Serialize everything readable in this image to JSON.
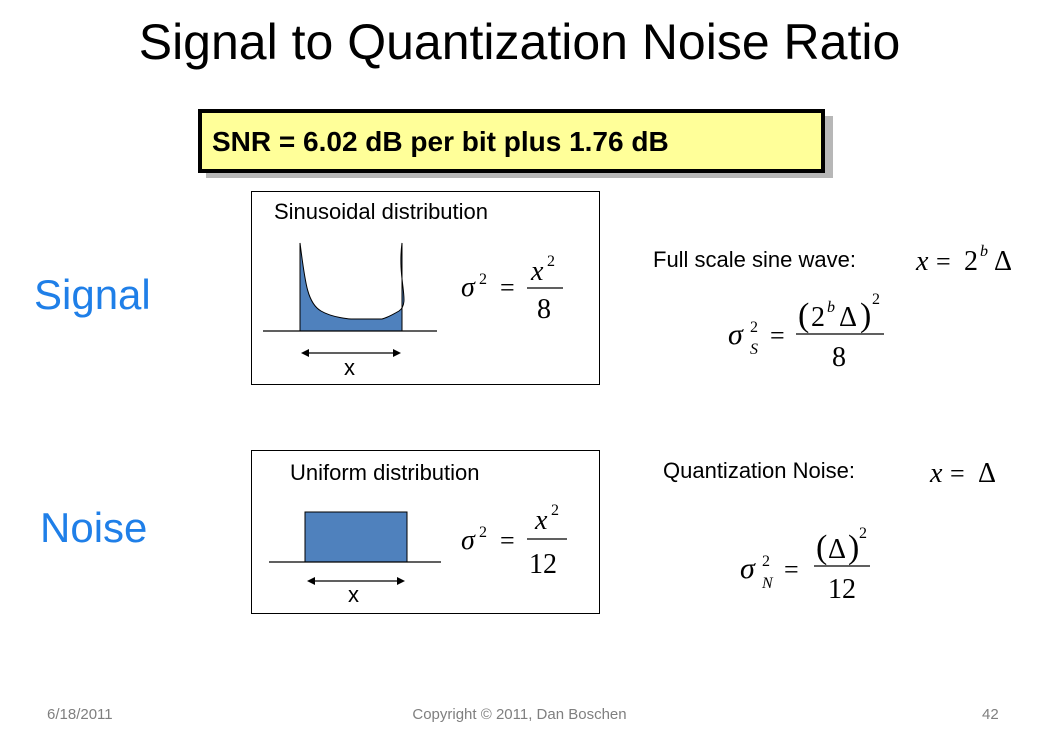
{
  "slide": {
    "title": "Signal to Quantization Noise Ratio",
    "callout": "SNR = 6.02 dB per bit plus 1.76 dB"
  },
  "signal": {
    "label": "Signal",
    "box_title": "Sinusoidal distribution",
    "width_label": "x",
    "formula_variance": "σ² = x² / 8",
    "fullscale_label": "Full scale sine wave:",
    "fullscale_formula": "x = 2ᵇ Δ",
    "signal_power_formula": "σS² = (2ᵇ Δ)² / 8"
  },
  "noise": {
    "label": "Noise",
    "box_title": "Uniform distribution",
    "width_label": "x",
    "formula_variance": "σ² = x² / 12",
    "qn_label": "Quantization Noise:",
    "qn_formula": "x = Δ",
    "noise_power_formula": "σN² = (Δ)² / 12"
  },
  "colors": {
    "accent": "#1f7fe8",
    "fill": "#4f81bd",
    "callout_bg": "#ffff99"
  },
  "footer": {
    "date": "6/18/2011",
    "copyright": "Copyright © 2011, Dan Boschen",
    "page_number": "42"
  }
}
